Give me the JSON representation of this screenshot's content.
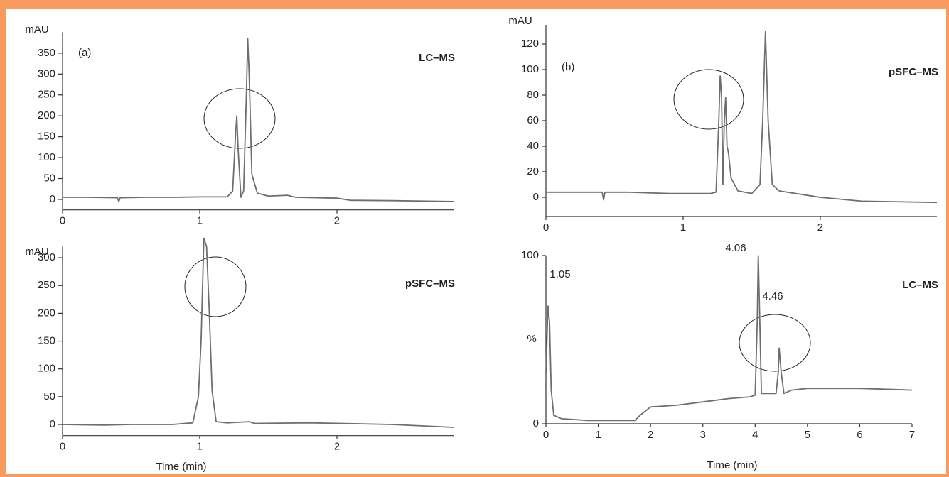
{
  "chart_data": [
    {
      "type": "line",
      "y_label": "mAU",
      "panel_label": "(a)",
      "annotation": "LC–MS",
      "color": "#6e6e6e",
      "x": [
        0,
        0.2,
        0.4,
        0.41,
        0.42,
        0.6,
        0.8,
        1.0,
        1.2,
        1.24,
        1.26,
        1.27,
        1.28,
        1.3,
        1.32,
        1.34,
        1.35,
        1.36,
        1.38,
        1.42,
        1.5,
        1.64,
        1.7,
        2.0,
        2.1,
        2.4,
        2.85
      ],
      "values": [
        5,
        5,
        4,
        -5,
        4,
        5,
        5,
        6,
        6,
        20,
        150,
        200,
        120,
        5,
        20,
        250,
        385,
        300,
        60,
        15,
        8,
        10,
        5,
        3,
        -2,
        -3,
        -5
      ],
      "xlim": [
        0,
        2.85
      ],
      "ylim": [
        -25,
        400
      ],
      "xticks": [
        0,
        1,
        2
      ],
      "yticks": [
        0,
        50,
        100,
        150,
        200,
        250,
        300,
        350
      ]
    },
    {
      "type": "line",
      "y_label": "mAU",
      "x_label": "Time (min)",
      "annotation": "pSFC–MS",
      "color": "#6e6e6e",
      "x": [
        0,
        0.3,
        0.5,
        0.8,
        0.95,
        0.99,
        1.01,
        1.03,
        1.05,
        1.07,
        1.09,
        1.12,
        1.2,
        1.36,
        1.4,
        1.8,
        2.4,
        2.85
      ],
      "values": [
        0,
        -1,
        0,
        0,
        3,
        50,
        150,
        335,
        320,
        200,
        60,
        5,
        3,
        5,
        2,
        3,
        0,
        -5
      ],
      "xlim": [
        0,
        2.85
      ],
      "ylim": [
        -20,
        320
      ],
      "xticks": [
        0,
        1,
        2
      ],
      "yticks": [
        0,
        50,
        100,
        150,
        200,
        250,
        300
      ]
    },
    {
      "type": "line",
      "y_label": "mAU",
      "panel_label": "(b)",
      "annotation": "pSFC–MS",
      "color": "#6e6e6e",
      "x": [
        0,
        0.3,
        0.41,
        0.42,
        0.43,
        0.6,
        0.9,
        1.1,
        1.2,
        1.24,
        1.26,
        1.27,
        1.28,
        1.29,
        1.3,
        1.31,
        1.32,
        1.33,
        1.35,
        1.4,
        1.5,
        1.56,
        1.58,
        1.6,
        1.62,
        1.65,
        1.7,
        2.0,
        2.3,
        2.85
      ],
      "values": [
        4,
        4,
        4,
        -2,
        4,
        4,
        3,
        3,
        3,
        4,
        60,
        95,
        80,
        10,
        60,
        78,
        40,
        35,
        15,
        5,
        3,
        10,
        60,
        130,
        60,
        10,
        5,
        0,
        -3,
        -4
      ],
      "xlim": [
        0,
        2.85
      ],
      "ylim": [
        -15,
        135
      ],
      "xticks": [
        0,
        1,
        2
      ],
      "yticks": [
        0,
        20,
        40,
        60,
        80,
        100,
        120
      ]
    },
    {
      "type": "line",
      "y_label": "%",
      "x_label": "Time (min)",
      "annotation": "LC–MS",
      "color": "#6e6e6e",
      "peak_labels": [
        "1.05",
        "4.06",
        "4.46"
      ],
      "x": [
        0,
        0.04,
        0.07,
        0.1,
        0.15,
        0.3,
        0.8,
        1.2,
        1.7,
        1.8,
        2,
        2.5,
        3,
        3.5,
        3.9,
        4,
        4.04,
        4.06,
        4.09,
        4.12,
        4.2,
        4.4,
        4.44,
        4.46,
        4.5,
        4.55,
        4.7,
        5,
        6,
        7
      ],
      "values": [
        30,
        70,
        60,
        20,
        5,
        3,
        2,
        2,
        2,
        5,
        10,
        11,
        13,
        15,
        16,
        17,
        60,
        100,
        60,
        18,
        18,
        18,
        30,
        45,
        30,
        18,
        20,
        21,
        21,
        20
      ],
      "xlim": [
        0,
        7
      ],
      "ylim": [
        0,
        100
      ],
      "xticks": [
        0,
        1,
        2,
        3,
        4,
        5,
        6,
        7
      ],
      "yticks": [
        0,
        100
      ]
    }
  ]
}
